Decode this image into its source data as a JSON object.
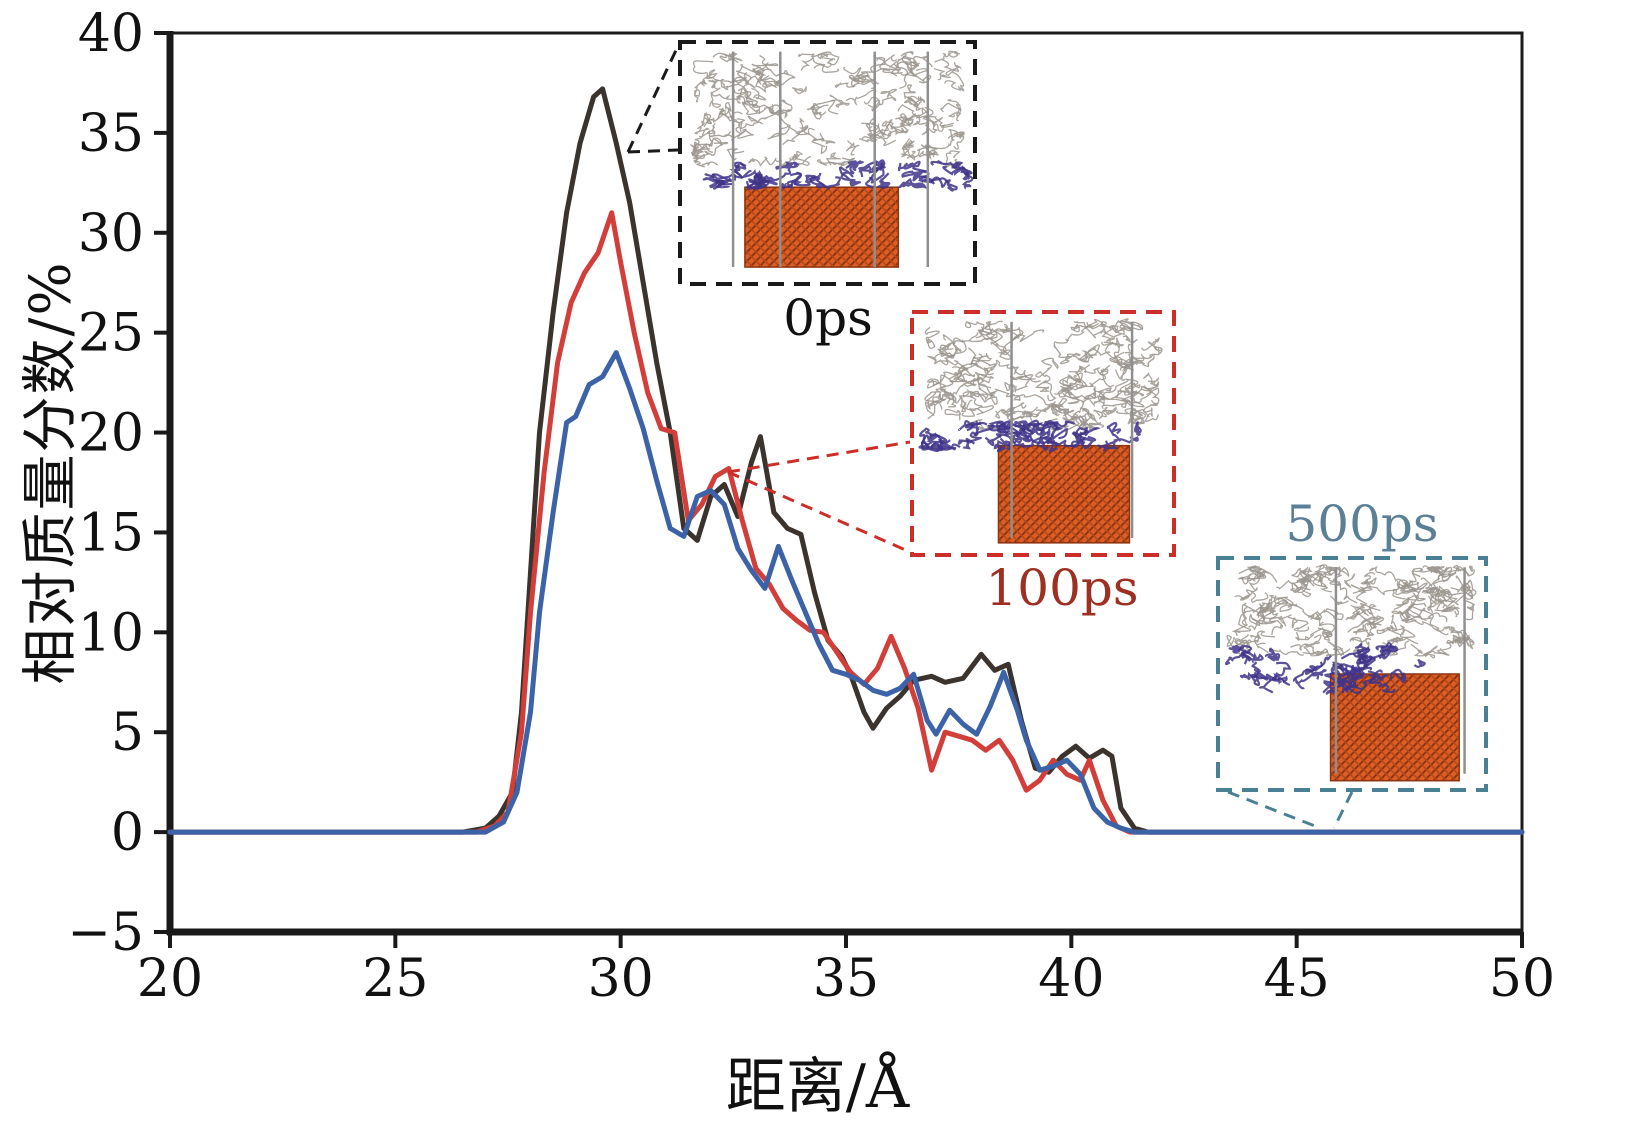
{
  "figure": {
    "background": "#ffffff"
  },
  "chart_data": {
    "type": "line",
    "title": "",
    "xlabel": "距离/Å",
    "ylabel": "相对质量分数/%",
    "xlim": [
      20,
      50
    ],
    "ylim": [
      -5,
      40
    ],
    "x_ticks": [
      20,
      25,
      30,
      35,
      40,
      45,
      50
    ],
    "y_ticks": [
      40,
      35,
      30,
      25,
      20,
      15,
      10,
      5,
      0,
      -5
    ],
    "grid": false,
    "legend_position": "none",
    "series": [
      {
        "name": "0ps",
        "color": "#3a332e",
        "points": [
          [
            20,
            0
          ],
          [
            26.5,
            0
          ],
          [
            27,
            0.2
          ],
          [
            27.3,
            0.8
          ],
          [
            27.6,
            2
          ],
          [
            27.8,
            6
          ],
          [
            28,
            13
          ],
          [
            28.2,
            20
          ],
          [
            28.5,
            26
          ],
          [
            28.8,
            31
          ],
          [
            29.1,
            34.5
          ],
          [
            29.4,
            36.8
          ],
          [
            29.6,
            37.2
          ],
          [
            29.9,
            34.5
          ],
          [
            30.2,
            31.5
          ],
          [
            30.5,
            27.5
          ],
          [
            30.8,
            23.5
          ],
          [
            31.1,
            20
          ],
          [
            31.4,
            15.2
          ],
          [
            31.7,
            14.6
          ],
          [
            32,
            16.8
          ],
          [
            32.3,
            17.4
          ],
          [
            32.6,
            15.8
          ],
          [
            32.9,
            18.5
          ],
          [
            33.1,
            19.8
          ],
          [
            33.4,
            16
          ],
          [
            33.7,
            15.2
          ],
          [
            34,
            14.9
          ],
          [
            34.3,
            12
          ],
          [
            34.6,
            9.6
          ],
          [
            34.9,
            8.8
          ],
          [
            35.1,
            7.9
          ],
          [
            35.4,
            6
          ],
          [
            35.6,
            5.2
          ],
          [
            35.9,
            6.2
          ],
          [
            36.2,
            6.8
          ],
          [
            36.5,
            7.6
          ],
          [
            36.9,
            7.8
          ],
          [
            37.2,
            7.5
          ],
          [
            37.6,
            7.7
          ],
          [
            38,
            8.9
          ],
          [
            38.3,
            8.1
          ],
          [
            38.6,
            8.4
          ],
          [
            38.9,
            5.5
          ],
          [
            39.2,
            3.2
          ],
          [
            39.5,
            3
          ],
          [
            39.8,
            3.8
          ],
          [
            40.1,
            4.3
          ],
          [
            40.4,
            3.7
          ],
          [
            40.7,
            4.1
          ],
          [
            40.9,
            3.8
          ],
          [
            41.1,
            1.2
          ],
          [
            41.4,
            0.2
          ],
          [
            41.7,
            0
          ],
          [
            50,
            0
          ]
        ]
      },
      {
        "name": "100ps",
        "color": "#d23f3a",
        "points": [
          [
            20,
            0
          ],
          [
            26.8,
            0
          ],
          [
            27.2,
            0.3
          ],
          [
            27.5,
            1
          ],
          [
            27.8,
            5
          ],
          [
            28,
            11
          ],
          [
            28.3,
            18
          ],
          [
            28.6,
            23.5
          ],
          [
            28.9,
            26.5
          ],
          [
            29.2,
            28
          ],
          [
            29.5,
            29
          ],
          [
            29.8,
            31
          ],
          [
            30,
            28.5
          ],
          [
            30.3,
            25
          ],
          [
            30.6,
            22
          ],
          [
            30.9,
            20.2
          ],
          [
            31.2,
            20
          ],
          [
            31.5,
            15.6
          ],
          [
            31.8,
            16.4
          ],
          [
            32.1,
            17.8
          ],
          [
            32.4,
            18.2
          ],
          [
            32.7,
            15.6
          ],
          [
            33,
            13.2
          ],
          [
            33.3,
            12.4
          ],
          [
            33.6,
            11.2
          ],
          [
            33.9,
            10.6
          ],
          [
            34.2,
            10.1
          ],
          [
            34.5,
            10
          ],
          [
            34.8,
            9
          ],
          [
            35.1,
            8
          ],
          [
            35.4,
            7.4
          ],
          [
            35.7,
            8.2
          ],
          [
            36,
            9.8
          ],
          [
            36.3,
            8.2
          ],
          [
            36.6,
            6.2
          ],
          [
            36.9,
            3.1
          ],
          [
            37.2,
            5
          ],
          [
            37.5,
            4.8
          ],
          [
            37.8,
            4.6
          ],
          [
            38.1,
            4.1
          ],
          [
            38.4,
            4.6
          ],
          [
            38.7,
            3.6
          ],
          [
            39,
            2.1
          ],
          [
            39.3,
            2.6
          ],
          [
            39.6,
            3.6
          ],
          [
            39.9,
            2.9
          ],
          [
            40.2,
            2.6
          ],
          [
            40.4,
            3.6
          ],
          [
            40.7,
            1.6
          ],
          [
            41,
            0.3
          ],
          [
            41.3,
            0
          ],
          [
            50,
            0
          ]
        ]
      },
      {
        "name": "500ps",
        "color": "#3c63a8",
        "points": [
          [
            20,
            0
          ],
          [
            27,
            0
          ],
          [
            27.4,
            0.5
          ],
          [
            27.7,
            2
          ],
          [
            28,
            6
          ],
          [
            28.2,
            11
          ],
          [
            28.5,
            16
          ],
          [
            28.8,
            20.5
          ],
          [
            29,
            20.8
          ],
          [
            29.3,
            22.4
          ],
          [
            29.6,
            22.8
          ],
          [
            29.9,
            24
          ],
          [
            30.2,
            22.2
          ],
          [
            30.5,
            20.2
          ],
          [
            30.8,
            17.6
          ],
          [
            31.1,
            15.2
          ],
          [
            31.4,
            14.8
          ],
          [
            31.7,
            16.8
          ],
          [
            32,
            17.1
          ],
          [
            32.3,
            16.4
          ],
          [
            32.6,
            14.2
          ],
          [
            32.9,
            13.1
          ],
          [
            33.2,
            12.2
          ],
          [
            33.5,
            14.3
          ],
          [
            33.8,
            12.6
          ],
          [
            34.1,
            11
          ],
          [
            34.4,
            9.4
          ],
          [
            34.7,
            8.1
          ],
          [
            35,
            7.9
          ],
          [
            35.3,
            7.6
          ],
          [
            35.6,
            7.1
          ],
          [
            35.9,
            6.9
          ],
          [
            36.2,
            7.2
          ],
          [
            36.5,
            7.9
          ],
          [
            36.8,
            5.6
          ],
          [
            37,
            4.9
          ],
          [
            37.3,
            6.1
          ],
          [
            37.6,
            5.4
          ],
          [
            37.9,
            4.9
          ],
          [
            38.2,
            6.3
          ],
          [
            38.5,
            8
          ],
          [
            38.8,
            6.1
          ],
          [
            39,
            4.6
          ],
          [
            39.3,
            3.1
          ],
          [
            39.6,
            3.3
          ],
          [
            39.9,
            3.6
          ],
          [
            40.2,
            2.9
          ],
          [
            40.5,
            1.2
          ],
          [
            40.8,
            0.5
          ],
          [
            41.1,
            0.2
          ],
          [
            41.4,
            0
          ],
          [
            50,
            0
          ]
        ]
      }
    ],
    "insets": [
      {
        "label": "0ps",
        "border_color": "#1a1a1a",
        "label_color": "#111111"
      },
      {
        "label": "100ps",
        "border_color": "#cc2f2a",
        "label_color": "#9e2f23"
      },
      {
        "label": "500ps",
        "border_color": "#4a8096",
        "label_color": "#5b7f95"
      }
    ],
    "colors": {
      "axis": "#1a1a1a",
      "substrate_orange": "#dd5e25",
      "substrate_hatch": "#8e3410",
      "adsorbate_purple": "#3f3489",
      "polymer_gray": "#9a948d"
    }
  }
}
